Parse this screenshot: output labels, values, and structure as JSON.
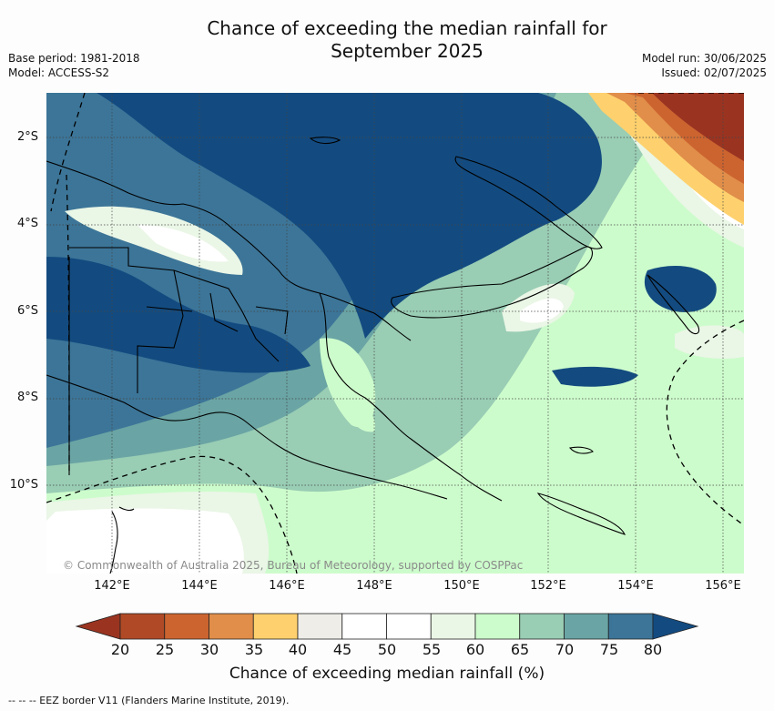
{
  "title_line1": "Chance of exceeding the median rainfall for",
  "title_line2": "September 2025",
  "left_meta": {
    "base_period": "Base period: 1981-2018",
    "model": "Model: ACCESS-S2"
  },
  "right_meta": {
    "model_run": "Model run: 30/06/2025",
    "issued": "Issued: 02/07/2025"
  },
  "map": {
    "lat_labels": [
      "2°S",
      "4°S",
      "6°S",
      "8°S",
      "10°S"
    ],
    "lon_labels": [
      "142°E",
      "144°E",
      "146°E",
      "148°E",
      "150°E",
      "152°E",
      "154°E",
      "156°E"
    ],
    "copyright": "© Commonwealth of Australia 2025, Bureau of Meteorology, supported by COSPPac"
  },
  "colorbar": {
    "title": "Chance of exceeding median rainfall (%)",
    "ticks": [
      "20",
      "25",
      "30",
      "35",
      "40",
      "45",
      "50",
      "55",
      "60",
      "65",
      "70",
      "75",
      "80"
    ],
    "colors": [
      "#9a3421",
      "#b04a26",
      "#cc6430",
      "#e08e4a",
      "#fed16e",
      "#eeede8",
      "#ffffff",
      "#ffffff",
      "#eaf6e6",
      "#cdfccc",
      "#99cdb4",
      "#6aa4a4",
      "#3c7598",
      "#134b80"
    ]
  },
  "footnote": "--  --  -- EEZ border V11 (Flanders Marine Institute, 2019)."
}
